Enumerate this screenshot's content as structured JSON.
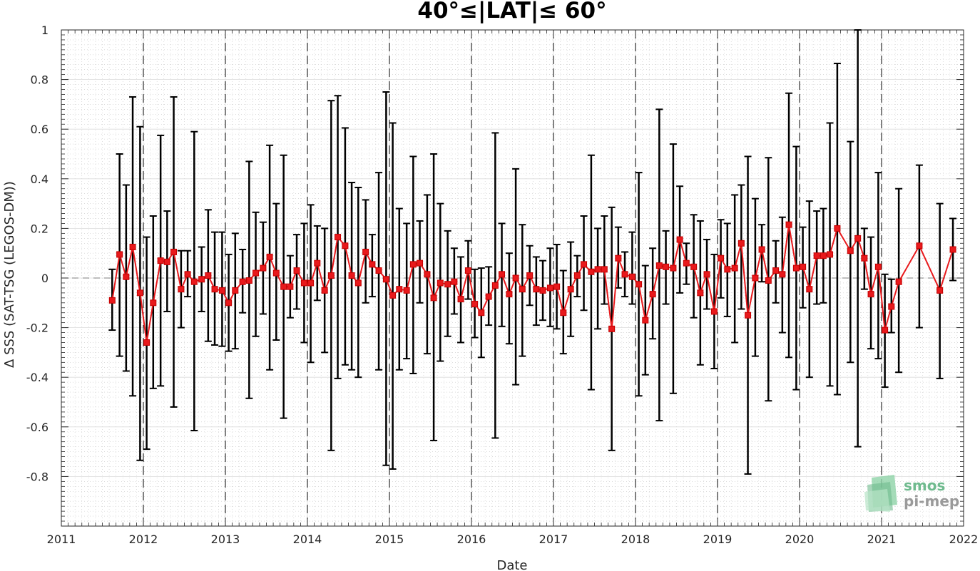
{
  "chart_data": {
    "type": "line",
    "title": "40°≤|LAT|≤ 60°",
    "xlabel": "Date",
    "ylabel": "Δ SSS (SAT-TSG (LEGOS-DM))",
    "xlim": [
      2011,
      2022
    ],
    "ylim": [
      -1,
      1
    ],
    "x_ticks": [
      "2011",
      "2012",
      "2013",
      "2014",
      "2015",
      "2016",
      "2017",
      "2018",
      "2019",
      "2020",
      "2021",
      "2022"
    ],
    "y_ticks": [
      "-0.8",
      "-0.6",
      "-0.4",
      "-0.2",
      "0",
      "0.2",
      "0.4",
      "0.6",
      "0.8",
      "1"
    ],
    "year_boundaries": [
      2012,
      2013,
      2014,
      2015,
      2016,
      2017,
      2018,
      2019,
      2020,
      2021
    ],
    "grid": true,
    "colors": {
      "line": "#e8191c",
      "error_bar": "#000000",
      "zero_line": "#7f7f7f",
      "logo": "#6fba8e"
    },
    "logo_text": [
      "smos",
      "pi-mep"
    ],
    "series": [
      {
        "x": [
          2011.62,
          2011.71,
          2011.79,
          2011.87,
          2011.96,
          2012.04,
          2012.12,
          2012.21,
          2012.29,
          2012.37,
          2012.46,
          2012.54,
          2012.62,
          2012.71,
          2012.79,
          2012.87,
          2012.96,
          2013.04,
          2013.12,
          2013.21,
          2013.29,
          2013.37,
          2013.46,
          2013.54,
          2013.62,
          2013.71,
          2013.79,
          2013.87,
          2013.96,
          2014.04,
          2014.12,
          2014.21,
          2014.29,
          2014.37,
          2014.46,
          2014.54,
          2014.62,
          2014.71,
          2014.79,
          2014.87,
          2014.96,
          2015.04,
          2015.12,
          2015.21,
          2015.29,
          2015.37,
          2015.46,
          2015.54,
          2015.62,
          2015.71,
          2015.79,
          2015.87,
          2015.96,
          2016.04,
          2016.12,
          2016.21,
          2016.29,
          2016.37,
          2016.46,
          2016.54,
          2016.62,
          2016.71,
          2016.79,
          2016.87,
          2016.96,
          2017.04,
          2017.12,
          2017.21,
          2017.29,
          2017.37,
          2017.46,
          2017.54,
          2017.62,
          2017.71,
          2017.79,
          2017.87,
          2017.96,
          2018.04,
          2018.12,
          2018.21,
          2018.29,
          2018.37,
          2018.46,
          2018.54,
          2018.62,
          2018.71,
          2018.79,
          2018.87,
          2018.96,
          2019.04,
          2019.12,
          2019.21,
          2019.29,
          2019.37,
          2019.46,
          2019.54,
          2019.62,
          2019.71,
          2019.79,
          2019.87,
          2019.96,
          2020.04,
          2020.12,
          2020.21,
          2020.29,
          2020.37,
          2020.46,
          2020.62,
          2020.71,
          2020.79,
          2020.87,
          2020.96,
          2021.04,
          2021.12,
          2021.21,
          2021.46,
          2021.71,
          2021.87
        ],
        "y": [
          -0.09,
          0.095,
          0.005,
          0.125,
          -0.06,
          -0.26,
          -0.1,
          0.07,
          0.065,
          0.105,
          -0.045,
          0.015,
          -0.015,
          -0.005,
          0.01,
          -0.045,
          -0.05,
          -0.1,
          -0.05,
          -0.015,
          -0.01,
          0.02,
          0.04,
          0.085,
          0.02,
          -0.035,
          -0.035,
          0.03,
          -0.02,
          -0.02,
          0.06,
          -0.05,
          0.01,
          0.165,
          0.13,
          0.01,
          -0.02,
          0.105,
          0.055,
          0.03,
          -0.005,
          -0.07,
          -0.045,
          -0.05,
          0.055,
          0.06,
          0.015,
          -0.08,
          -0.02,
          -0.025,
          -0.015,
          -0.085,
          0.03,
          -0.105,
          -0.14,
          -0.075,
          -0.03,
          0.015,
          -0.065,
          0.0,
          -0.045,
          0.01,
          -0.045,
          -0.05,
          -0.04,
          -0.035,
          -0.14,
          -0.045,
          0.01,
          0.055,
          0.025,
          0.035,
          0.035,
          -0.205,
          0.08,
          0.015,
          0.005,
          -0.025,
          -0.17,
          -0.065,
          0.05,
          0.045,
          0.04,
          0.155,
          0.06,
          0.045,
          -0.06,
          0.015,
          -0.135,
          0.08,
          0.035,
          0.04,
          0.14,
          -0.15,
          0.0,
          0.115,
          -0.01,
          0.03,
          0.015,
          0.215,
          0.04,
          0.045,
          -0.045,
          0.09,
          0.09,
          0.095,
          0.2,
          0.11,
          0.16,
          0.08,
          -0.065,
          0.045,
          -0.21,
          -0.115,
          -0.015,
          0.13,
          -0.05,
          0.115
        ],
        "err_upper": [
          0.035,
          0.5,
          0.375,
          0.73,
          0.61,
          0.165,
          0.25,
          0.575,
          0.27,
          0.73,
          0.11,
          0.11,
          0.59,
          0.125,
          0.275,
          0.185,
          0.185,
          0.095,
          0.18,
          0.115,
          0.47,
          0.265,
          0.225,
          0.535,
          0.3,
          0.495,
          0.09,
          0.175,
          0.22,
          0.295,
          0.21,
          0.2,
          0.715,
          0.735,
          0.605,
          0.385,
          0.365,
          0.315,
          0.175,
          0.425,
          0.75,
          0.625,
          0.28,
          0.22,
          0.49,
          0.23,
          0.335,
          0.5,
          0.3,
          0.19,
          0.12,
          0.085,
          0.15,
          0.035,
          0.04,
          0.045,
          0.585,
          0.22,
          0.1,
          0.44,
          0.215,
          0.13,
          0.085,
          0.07,
          0.12,
          0.135,
          0.03,
          0.145,
          0.09,
          0.25,
          0.495,
          0.2,
          0.25,
          0.285,
          0.205,
          0.105,
          0.185,
          0.425,
          0.05,
          0.12,
          0.68,
          0.19,
          0.54,
          0.37,
          0.14,
          0.255,
          0.23,
          0.155,
          0.095,
          0.235,
          0.22,
          0.335,
          0.375,
          0.49,
          0.32,
          0.215,
          0.485,
          0.15,
          0.245,
          0.745,
          0.53,
          0.205,
          0.31,
          0.27,
          0.28,
          0.625,
          0.865,
          0.55,
          1.0,
          0.2,
          0.165,
          0.425,
          0.015,
          -0.005,
          0.36,
          0.455,
          0.3,
          0.24
        ],
        "err_lower": [
          -0.21,
          -0.315,
          -0.375,
          -0.475,
          -0.735,
          -0.69,
          -0.445,
          -0.435,
          -0.135,
          -0.52,
          -0.2,
          -0.075,
          -0.615,
          -0.135,
          -0.255,
          -0.27,
          -0.275,
          -0.295,
          -0.285,
          -0.14,
          -0.485,
          -0.235,
          -0.145,
          -0.37,
          -0.25,
          -0.565,
          -0.16,
          -0.125,
          -0.26,
          -0.34,
          -0.09,
          -0.3,
          -0.695,
          -0.405,
          -0.35,
          -0.37,
          -0.4,
          -0.1,
          -0.075,
          -0.37,
          -0.755,
          -0.77,
          -0.37,
          -0.325,
          -0.385,
          -0.1,
          -0.305,
          -0.655,
          -0.335,
          -0.235,
          -0.145,
          -0.26,
          -0.085,
          -0.24,
          -0.32,
          -0.19,
          -0.645,
          -0.195,
          -0.265,
          -0.43,
          -0.315,
          -0.11,
          -0.19,
          -0.17,
          -0.195,
          -0.205,
          -0.305,
          -0.235,
          -0.075,
          -0.13,
          -0.45,
          -0.205,
          -0.105,
          -0.695,
          -0.04,
          -0.075,
          -0.105,
          -0.475,
          -0.39,
          -0.245,
          -0.575,
          -0.105,
          -0.465,
          -0.06,
          -0.025,
          -0.16,
          -0.35,
          -0.125,
          -0.365,
          -0.08,
          -0.155,
          -0.26,
          -0.125,
          -0.79,
          -0.315,
          -0.015,
          -0.495,
          -0.1,
          -0.22,
          -0.32,
          -0.45,
          -0.12,
          -0.4,
          -0.105,
          -0.1,
          -0.435,
          -0.47,
          -0.34,
          -0.68,
          -0.045,
          -0.285,
          -0.325,
          -0.44,
          -0.22,
          -0.38,
          -0.2,
          -0.405,
          -0.01
        ]
      }
    ]
  }
}
